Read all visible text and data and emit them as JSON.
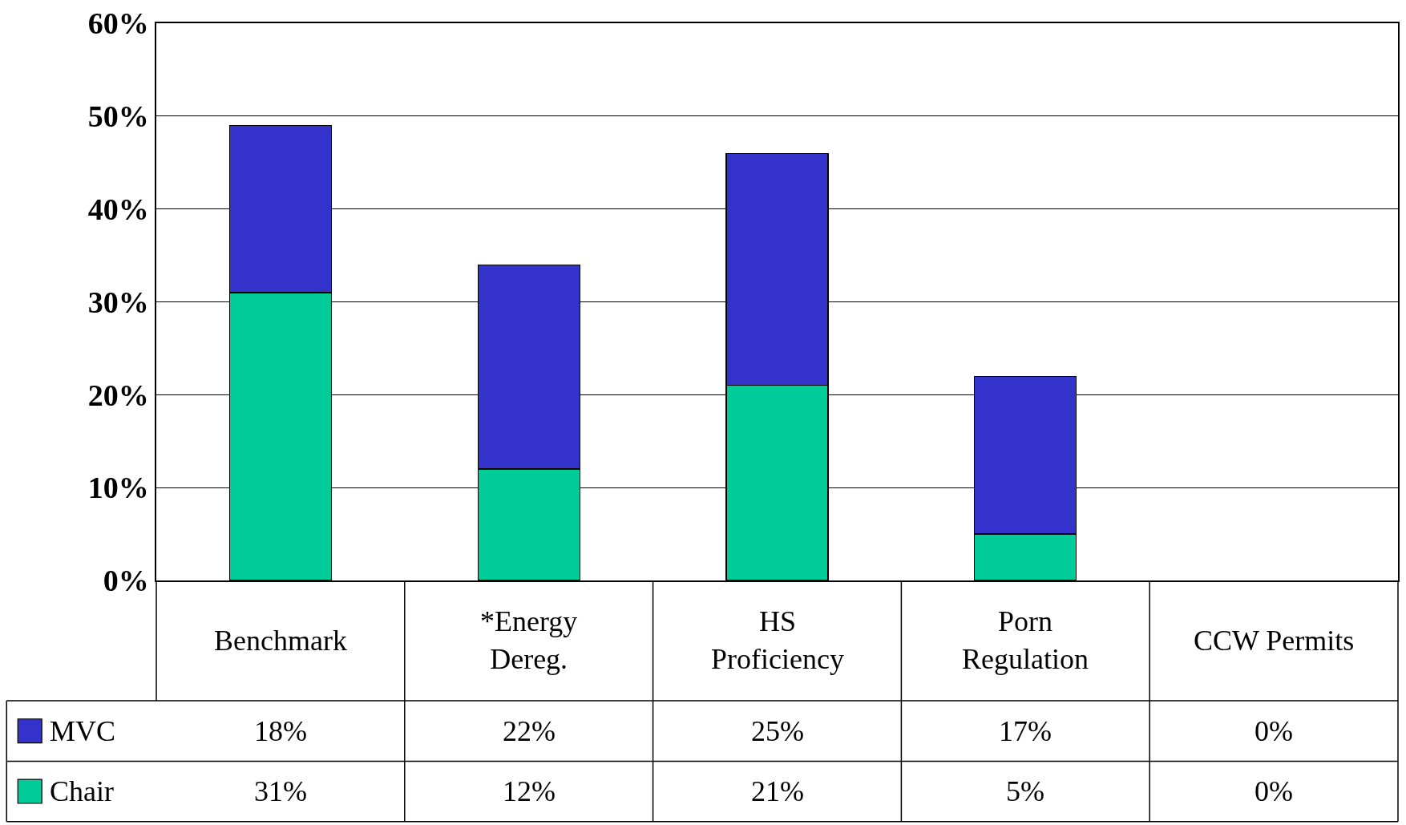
{
  "chart_data": {
    "type": "bar",
    "stacked": true,
    "categories": [
      "Benchmark",
      "*Energy\nDereg.",
      "HS\nProficiency",
      "Porn\nRegulation",
      "CCW Permits"
    ],
    "series": [
      {
        "name": "Chair",
        "color": "#00cc99",
        "values": [
          31,
          12,
          21,
          5,
          0
        ],
        "value_labels": [
          "31%",
          "12%",
          "21%",
          "5%",
          "0%"
        ]
      },
      {
        "name": "MVC",
        "color": "#3333cc",
        "values": [
          18,
          22,
          25,
          17,
          0
        ],
        "value_labels": [
          "18%",
          "22%",
          "25%",
          "17%",
          "0%"
        ]
      }
    ],
    "ylim": [
      0,
      60
    ],
    "yticks": [
      {
        "value": 0,
        "label": "0%"
      },
      {
        "value": 10,
        "label": "10%"
      },
      {
        "value": 20,
        "label": "20%"
      },
      {
        "value": 30,
        "label": "30%"
      },
      {
        "value": 40,
        "label": "40%"
      },
      {
        "value": 50,
        "label": "50%"
      },
      {
        "value": 60,
        "label": "60%"
      }
    ],
    "grid": "y",
    "legend": "bottom"
  }
}
